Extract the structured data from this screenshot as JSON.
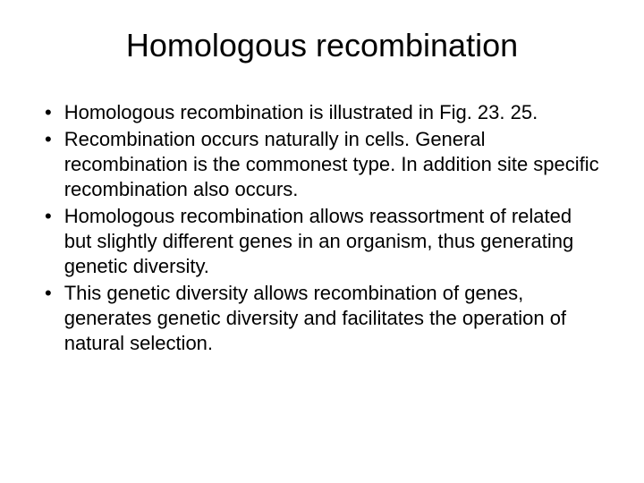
{
  "title": "Homologous recombination",
  "bullets": [
    {
      "text": "Homologous recombination is illustrated in Fig. 23. 25."
    },
    {
      "text": "Recombination occurs naturally in cells. General recombination is the commonest type. In addition site specific recombination also occurs."
    },
    {
      "text": "Homologous recombination allows reassortment of related but slightly different genes in an organism, thus generating genetic diversity."
    },
    {
      "text": "This genetic diversity allows recombination of genes, generates genetic diversity and facilitates the operation of natural selection."
    }
  ],
  "styling": {
    "background_color": "#ffffff",
    "text_color": "#000000",
    "title_fontsize": 36,
    "body_fontsize": 22,
    "line_height": 28,
    "font_family": "Arial",
    "bullet_char": "•"
  }
}
